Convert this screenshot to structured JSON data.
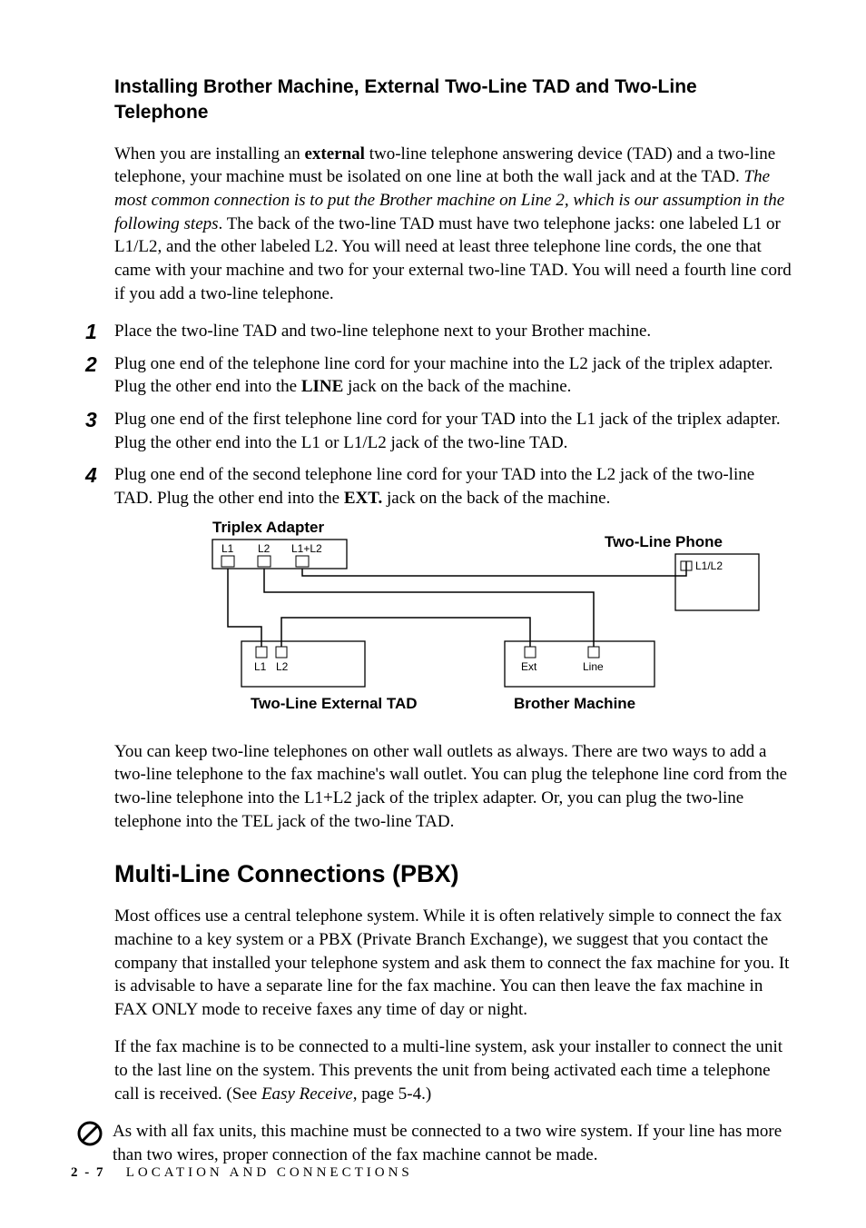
{
  "heading3": "Installing Brother Machine, External Two-Line TAD and Two-Line Telephone",
  "intro_pre": "When you are installing an ",
  "intro_bold1": "external",
  "intro_mid": " two-line telephone answering device (TAD) and a two-line telephone, your machine must be isolated on one line at both the wall jack and at the TAD. ",
  "intro_italic": "The most common connection is to put the Brother machine on Line 2, which is our assumption in the following steps",
  "intro_post": ". The back of the two-line TAD must have two telephone jacks: one labeled L1 or L1/L2, and the other labeled L2. You will need at least three telephone line cords, the one that came with your machine and two for your external two-line TAD. You will need a fourth line cord if you add a two-line telephone.",
  "steps": [
    {
      "num": "1",
      "pre": "Place the two-line TAD and two-line telephone next to your Brother machine.",
      "b": "",
      "post": ""
    },
    {
      "num": "2",
      "pre": "Plug one end of the telephone line cord for your machine into the L2 jack of the triplex adapter. Plug the other end into the ",
      "b": "LINE",
      "post": " jack on the back of the machine."
    },
    {
      "num": "3",
      "pre": "Plug one end of the first telephone line cord for your TAD into the L1 jack of the triplex adapter. Plug the other end into the L1 or L1/L2 jack of the two-line TAD.",
      "b": "",
      "post": ""
    },
    {
      "num": "4",
      "pre": "Plug one end of the second telephone line cord for your TAD into the L2 jack of the two-line TAD. Plug the other end into the ",
      "b": "EXT.",
      "post": " jack on the back of the machine."
    }
  ],
  "diagram": {
    "labels": {
      "triplex": "Triplex Adapter",
      "two_line_phone": "Two-Line Phone",
      "two_line_tad": "Two-Line External TAD",
      "brother": "Brother Machine",
      "L1": "L1",
      "L2": "L2",
      "L1L2": "L1+L2",
      "L1_L2": "L1/L2",
      "Ext": "Ext",
      "Line": "Line"
    },
    "colors": {
      "stroke": "#000000",
      "fill": "#ffffff"
    }
  },
  "after_diagram": "You can keep two-line telephones on other wall outlets as always. There are two ways to add a two-line telephone to the fax machine's wall outlet. You can plug the telephone line cord from the two-line telephone into the L1+L2 jack of the triplex adapter.  Or, you can plug the two-line telephone into the TEL jack of the two-line TAD.",
  "heading2": "Multi-Line Connections (PBX)",
  "pbx_p1": "Most offices use a central telephone system. While it is often relatively simple to connect the fax machine to a key system or a PBX (Private Branch Exchange), we suggest that you contact the company that installed your telephone system and ask them to connect the fax machine for you. It is advisable to have a separate line for the fax machine. You can then leave the fax machine in FAX ONLY mode to receive faxes any time of day or night.",
  "pbx_p2_pre": "If the fax machine is to be connected to a multi-line system, ask your installer to connect the unit to the last line on the system. This prevents the unit from being activated each time a telephone call is received. (See ",
  "pbx_p2_italic": "Easy Receive",
  "pbx_p2_post": ", page 5-4.)",
  "note": "As with all fax units, this machine must be connected to a two wire system. If your line has more than two wires, proper connection of the fax machine cannot be made.",
  "footer_page": "2 - 7",
  "footer_title": "LOCATION AND CONNECTIONS"
}
